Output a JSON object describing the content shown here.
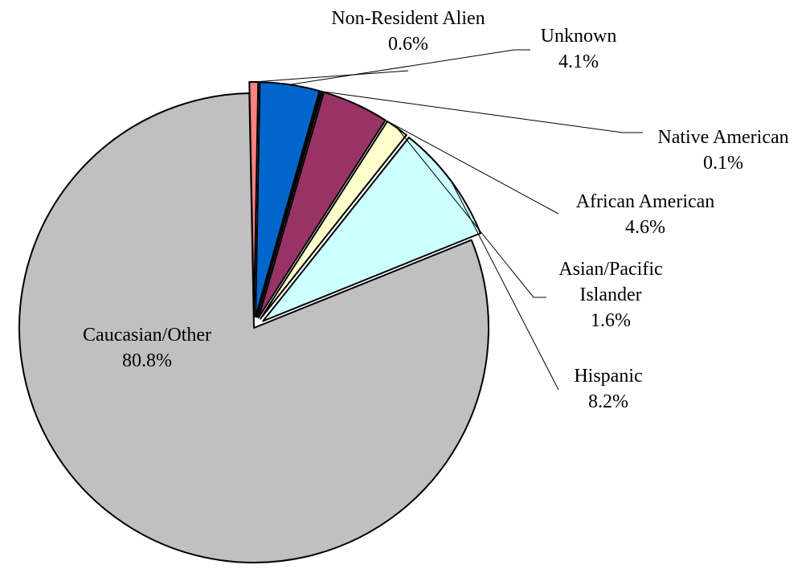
{
  "chart_data": {
    "type": "pie",
    "title": "",
    "slices": [
      {
        "label": "Hispanic",
        "value": 8.2,
        "value_label": "8.2%",
        "color": "#ccffff"
      },
      {
        "label": "Asian/Pacific Islander",
        "label_lines": [
          "Asian/Pacific",
          "Islander"
        ],
        "value": 1.6,
        "value_label": "1.6%",
        "color": "#ffffcc"
      },
      {
        "label": "African American",
        "value": 4.6,
        "value_label": "4.6%",
        "color": "#993366"
      },
      {
        "label": "Native American",
        "value": 0.1,
        "value_label": "0.1%",
        "color": "#000080"
      },
      {
        "label": "Unknown",
        "value": 4.1,
        "value_label": "4.1%",
        "color": "#0066cc"
      },
      {
        "label": "Non-Resident Alien",
        "value": 0.6,
        "value_label": "0.6%",
        "color": "#ff8080"
      },
      {
        "label": "Caucasian/Other",
        "value": 80.8,
        "value_label": "80.8%",
        "color": "#c0c0c0"
      }
    ]
  }
}
